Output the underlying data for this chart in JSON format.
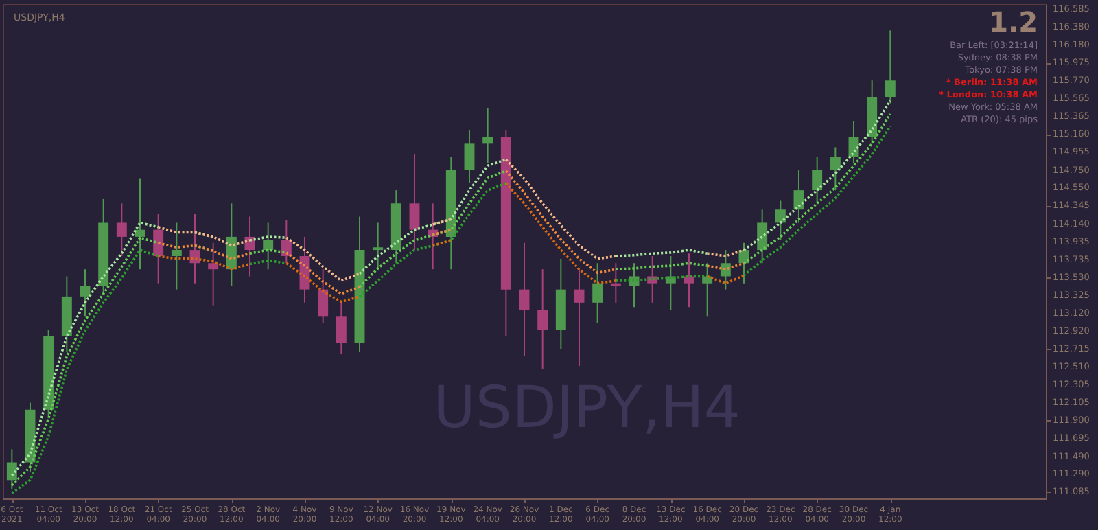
{
  "chart_data": {
    "type": "candlestick",
    "title": "USDJPY,H4",
    "annotations": [
      "USDJPY,H4",
      "1.2",
      "Bar Left: [03:21:14]",
      "Sydney: 08:38 PM",
      "Tokyo: 07:38 PM",
      "* Berlin: 11:38 AM",
      "* London: 10:38 AM",
      "New York: 05:38 AM",
      "ATR (20): 45 pips"
    ],
    "categories": [
      "6 Oct 2021",
      null,
      "11 Oct 04:00",
      null,
      "13 Oct 20:00",
      null,
      "18 Oct 12:00",
      null,
      "21 Oct 04:00",
      null,
      "25 Oct 20:00",
      null,
      "28 Oct 12:00",
      null,
      "2 Nov 04:00",
      null,
      "4 Nov 20:00",
      null,
      "9 Nov 12:00",
      null,
      "12 Nov 04:00",
      null,
      "16 Nov 20:00",
      null,
      "19 Nov 12:00",
      null,
      "24 Nov 04:00",
      null,
      "26 Nov 20:00",
      null,
      "1 Dec 12:00",
      null,
      "6 Dec 04:00",
      null,
      "8 Dec 20:00",
      null,
      "13 Dec 12:00",
      null,
      "16 Dec 04:00",
      null,
      "20 Dec 20:00",
      null,
      "23 Dec 12:00",
      null,
      "28 Dec 04:00",
      null,
      "30 Dec 20:00",
      null,
      "4 Jan 12:00",
      null,
      null,
      null,
      null,
      null,
      null,
      null,
      null
    ],
    "ohlc": [
      [
        111.22,
        111.57,
        111.12,
        111.42
      ],
      [
        111.42,
        112.1,
        111.31,
        112.02
      ],
      [
        112.02,
        112.93,
        111.95,
        112.86
      ],
      [
        112.86,
        113.54,
        112.68,
        113.31
      ],
      [
        113.31,
        113.62,
        113.08,
        113.43
      ],
      [
        113.43,
        114.42,
        113.34,
        114.15
      ],
      [
        114.15,
        114.37,
        113.77,
        113.99
      ],
      [
        113.99,
        114.65,
        113.62,
        114.07
      ],
      [
        114.07,
        114.25,
        113.46,
        113.77
      ],
      [
        113.77,
        114.15,
        113.39,
        113.84
      ],
      [
        113.84,
        114.25,
        113.46,
        113.69
      ],
      [
        113.69,
        113.92,
        113.21,
        113.62
      ],
      [
        113.62,
        114.37,
        113.43,
        113.99
      ],
      [
        113.99,
        114.22,
        113.54,
        113.84
      ],
      [
        113.84,
        114.15,
        113.62,
        113.95
      ],
      [
        113.95,
        114.18,
        113.69,
        113.77
      ],
      [
        113.77,
        113.99,
        113.24,
        113.39
      ],
      [
        113.39,
        113.62,
        113.01,
        113.08
      ],
      [
        113.08,
        113.24,
        112.66,
        112.78
      ],
      [
        112.78,
        114.22,
        112.68,
        113.84
      ],
      [
        113.84,
        114.15,
        113.62,
        113.87
      ],
      [
        113.84,
        114.52,
        113.69,
        114.37
      ],
      [
        114.37,
        114.93,
        113.84,
        114.07
      ],
      [
        114.07,
        114.37,
        113.62,
        113.99
      ],
      [
        113.99,
        114.9,
        113.62,
        114.75
      ],
      [
        114.75,
        115.21,
        114.6,
        115.05
      ],
      [
        115.05,
        115.46,
        114.83,
        115.13
      ],
      [
        115.13,
        115.21,
        112.86,
        113.39
      ],
      [
        113.39,
        113.92,
        112.63,
        113.16
      ],
      [
        113.16,
        113.62,
        112.48,
        112.93
      ],
      [
        112.93,
        113.74,
        112.71,
        113.39
      ],
      [
        113.39,
        113.62,
        112.52,
        113.24
      ],
      [
        113.24,
        113.69,
        113.01,
        113.46
      ],
      [
        113.46,
        113.69,
        113.24,
        113.43
      ],
      [
        113.43,
        113.69,
        113.19,
        113.54
      ],
      [
        113.54,
        113.77,
        113.24,
        113.46
      ],
      [
        113.46,
        113.77,
        113.16,
        113.54
      ],
      [
        113.54,
        113.8,
        113.19,
        113.46
      ],
      [
        113.46,
        113.69,
        113.08,
        113.54
      ],
      [
        113.54,
        113.84,
        113.39,
        113.69
      ],
      [
        113.69,
        113.92,
        113.46,
        113.84
      ],
      [
        113.84,
        114.3,
        113.69,
        114.15
      ],
      [
        114.15,
        114.4,
        113.95,
        114.3
      ],
      [
        114.3,
        114.75,
        114.15,
        114.52
      ],
      [
        114.52,
        114.9,
        114.37,
        114.75
      ],
      [
        114.75,
        115.01,
        114.52,
        114.9
      ],
      [
        114.9,
        115.31,
        114.83,
        115.13
      ],
      [
        115.13,
        115.77,
        115.05,
        115.58
      ],
      [
        115.58,
        116.34,
        115.51,
        115.77
      ],
      null,
      null,
      null,
      null,
      null,
      null,
      null,
      null
    ],
    "series": [
      {
        "type": "line",
        "color": "#a8e6a0",
        "values": [
          111.27,
          111.52,
          112.18,
          112.86,
          113.24,
          113.54,
          113.8,
          114.15,
          114.1,
          null,
          114.04,
          113.99,
          null,
          113.95,
          113.99,
          113.98,
          null,
          null,
          null,
          113.57,
          113.77,
          113.92,
          114.07,
          114.13,
          114.19,
          114.52,
          114.8,
          114.87,
          null,
          null,
          null,
          null,
          null,
          113.77,
          113.78,
          113.8,
          113.81,
          113.84,
          113.8,
          null,
          113.84,
          113.99,
          114.15,
          114.34,
          114.52,
          114.71,
          114.95,
          115.21,
          115.54,
          null,
          null,
          null,
          null,
          null,
          null,
          null,
          null
        ]
      },
      {
        "type": "line",
        "color": "#66cc55",
        "values": [
          111.16,
          111.37,
          111.92,
          112.63,
          113.04,
          113.34,
          113.65,
          113.98,
          113.92,
          null,
          113.89,
          113.83,
          null,
          113.8,
          113.84,
          113.81,
          null,
          null,
          null,
          113.42,
          113.63,
          113.8,
          113.95,
          114.01,
          114.07,
          114.37,
          114.66,
          114.74,
          null,
          null,
          null,
          null,
          null,
          113.62,
          113.63,
          113.65,
          113.66,
          113.69,
          113.66,
          null,
          113.69,
          113.84,
          113.99,
          114.19,
          114.37,
          114.55,
          114.8,
          115.05,
          115.39,
          null,
          null,
          null,
          null,
          null,
          null,
          null,
          null
        ]
      },
      {
        "type": "line",
        "color": "#2e9e2e",
        "values": [
          111.07,
          111.22,
          111.72,
          112.48,
          112.92,
          113.24,
          113.52,
          113.84,
          113.77,
          null,
          null,
          null,
          null,
          113.68,
          113.72,
          113.69,
          null,
          null,
          null,
          113.31,
          113.49,
          113.68,
          113.84,
          113.89,
          113.95,
          114.25,
          114.52,
          114.6,
          null,
          null,
          null,
          null,
          null,
          113.49,
          113.49,
          113.51,
          113.52,
          113.54,
          113.54,
          null,
          113.55,
          113.72,
          113.87,
          114.07,
          114.25,
          114.43,
          114.68,
          114.93,
          115.25,
          null,
          null,
          null,
          null,
          null,
          null,
          null,
          null
        ]
      },
      {
        "type": "line",
        "color": "#f5b98a",
        "values": [
          null,
          null,
          null,
          null,
          null,
          null,
          null,
          null,
          114.1,
          114.04,
          114.04,
          113.99,
          113.89,
          113.95,
          null,
          113.98,
          113.84,
          113.65,
          113.49,
          113.57,
          null,
          null,
          null,
          114.13,
          114.19,
          null,
          null,
          114.87,
          114.65,
          114.37,
          114.12,
          113.89,
          113.74,
          113.77,
          null,
          null,
          null,
          null,
          113.8,
          113.77,
          113.84,
          null,
          null,
          null,
          null,
          null,
          null,
          null,
          null,
          null,
          null,
          null,
          null,
          null,
          null,
          null,
          null
        ]
      },
      {
        "type": "line",
        "color": "#f08a3c",
        "values": [
          null,
          null,
          null,
          null,
          null,
          null,
          null,
          null,
          113.92,
          113.87,
          113.89,
          113.83,
          113.74,
          113.8,
          null,
          113.81,
          113.66,
          113.48,
          113.34,
          113.42,
          null,
          null,
          null,
          114.01,
          114.07,
          null,
          null,
          114.74,
          114.49,
          114.22,
          113.96,
          113.74,
          113.58,
          113.62,
          null,
          null,
          null,
          null,
          113.66,
          113.62,
          113.69,
          null,
          null,
          null,
          null,
          null,
          null,
          null,
          null,
          null,
          null,
          null,
          null,
          null,
          null,
          null,
          null
        ]
      },
      {
        "type": "line",
        "color": "#d96a10",
        "values": [
          null,
          null,
          null,
          null,
          null,
          null,
          null,
          null,
          113.77,
          113.74,
          113.74,
          113.71,
          113.62,
          113.68,
          null,
          113.69,
          113.54,
          113.37,
          113.25,
          113.31,
          null,
          null,
          null,
          113.89,
          113.95,
          null,
          null,
          114.6,
          114.37,
          114.1,
          113.84,
          113.62,
          113.46,
          113.49,
          null,
          null,
          null,
          null,
          113.54,
          113.46,
          113.55,
          null,
          null,
          null,
          null,
          null,
          null,
          null,
          null,
          null,
          null,
          null,
          null,
          null,
          null,
          null,
          null
        ]
      }
    ],
    "line_style": "dotted",
    "ylim": [
      111.01,
      116.64
    ],
    "yticks": [
      116.585,
      {
        "value": 116.38,
        "label": "116.380"
      },
      {
        "value": 116.18,
        "label": "116.180"
      },
      115.975,
      {
        "value": 115.77,
        "label": "115.770"
      },
      115.565,
      115.365,
      {
        "value": 115.16,
        "label": "115.160"
      },
      114.955,
      {
        "value": 114.75,
        "label": "114.750"
      },
      {
        "value": 114.55,
        "label": "114.550"
      },
      114.345,
      {
        "value": 114.14,
        "label": "114.140"
      },
      113.935,
      113.735,
      {
        "value": 113.53,
        "label": "113.530"
      },
      113.325,
      {
        "value": 113.12,
        "label": "113.120"
      },
      {
        "value": 112.92,
        "label": "112.920"
      },
      112.715,
      {
        "value": 112.51,
        "label": "112.510"
      },
      112.305,
      112.105,
      {
        "value": 111.9,
        "label": "111.900"
      },
      111.695,
      {
        "value": 111.49,
        "label": "111.490"
      },
      {
        "value": 111.29,
        "label": "111.290"
      },
      111.085
    ]
  }
}
